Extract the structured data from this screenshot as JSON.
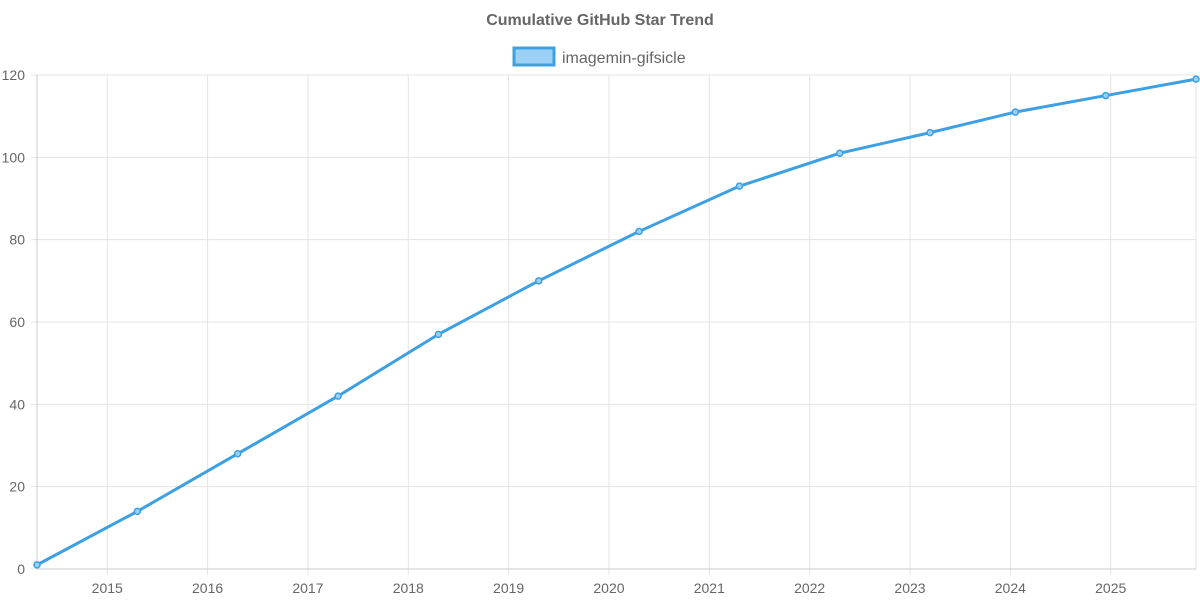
{
  "chart_data": {
    "type": "line",
    "title": "Cumulative GitHub Star Trend",
    "xlabel": "",
    "ylabel": "",
    "legend_position": "top-center",
    "grid": true,
    "xlim": [
      2014.3,
      2025.85
    ],
    "ylim": [
      0,
      120
    ],
    "x_ticks": [
      2015,
      2016,
      2017,
      2018,
      2019,
      2020,
      2021,
      2022,
      2023,
      2024,
      2025
    ],
    "x_tick_labels": [
      "2015",
      "2016",
      "2017",
      "2018",
      "2019",
      "2020",
      "2021",
      "2022",
      "2023",
      "2024",
      "2025"
    ],
    "y_ticks": [
      0,
      20,
      40,
      60,
      80,
      100,
      120
    ],
    "y_tick_labels": [
      "0",
      "20",
      "40",
      "60",
      "80",
      "100",
      "120"
    ],
    "series": [
      {
        "name": "imagemin-gifsicle",
        "color": "#3da0e2",
        "fill_color": "#9dd0f5",
        "x": [
          2014.3,
          2015.3,
          2016.3,
          2017.3,
          2018.3,
          2019.3,
          2020.3,
          2021.3,
          2022.3,
          2023.2,
          2024.05,
          2024.95,
          2025.85
        ],
        "values": [
          1,
          14,
          28,
          42,
          57,
          70,
          82,
          93,
          101,
          106,
          111,
          115,
          119
        ]
      }
    ]
  }
}
